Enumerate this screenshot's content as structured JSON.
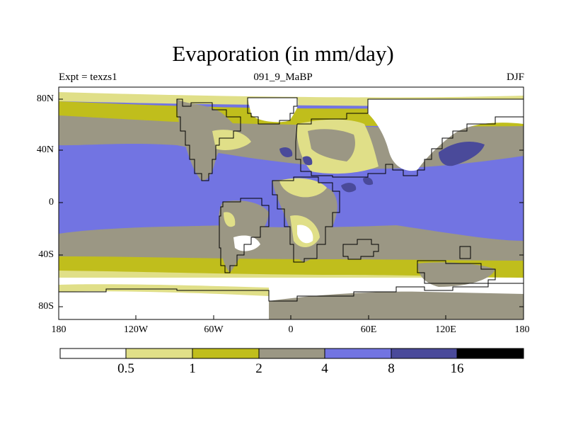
{
  "title": "Evaporation (in mm/day)",
  "subtitle_left": "Expt = texzs1",
  "subtitle_center": "091_9_MaBP",
  "subtitle_right": "DJF",
  "lat_ticks": [
    "80N",
    "40N",
    "0",
    "40S",
    "80S"
  ],
  "lon_ticks": [
    "180",
    "120W",
    "60W",
    "0",
    "60E",
    "120E",
    "180"
  ],
  "colorbar": {
    "colors": [
      "#ffffff",
      "#e0df88",
      "#c0be1c",
      "#9b9784",
      "#7274e2",
      "#4a4a9a",
      "#000000"
    ],
    "labels": [
      "0.5",
      "1",
      "2",
      "4",
      "8",
      "16"
    ]
  },
  "map_colors": {
    "lt05": "#ffffff",
    "b05_1": "#e0df88",
    "b1_2": "#c0be1c",
    "b2_4": "#9b9784",
    "b4_8": "#7274e2",
    "b8_16": "#4a4a9a"
  }
}
